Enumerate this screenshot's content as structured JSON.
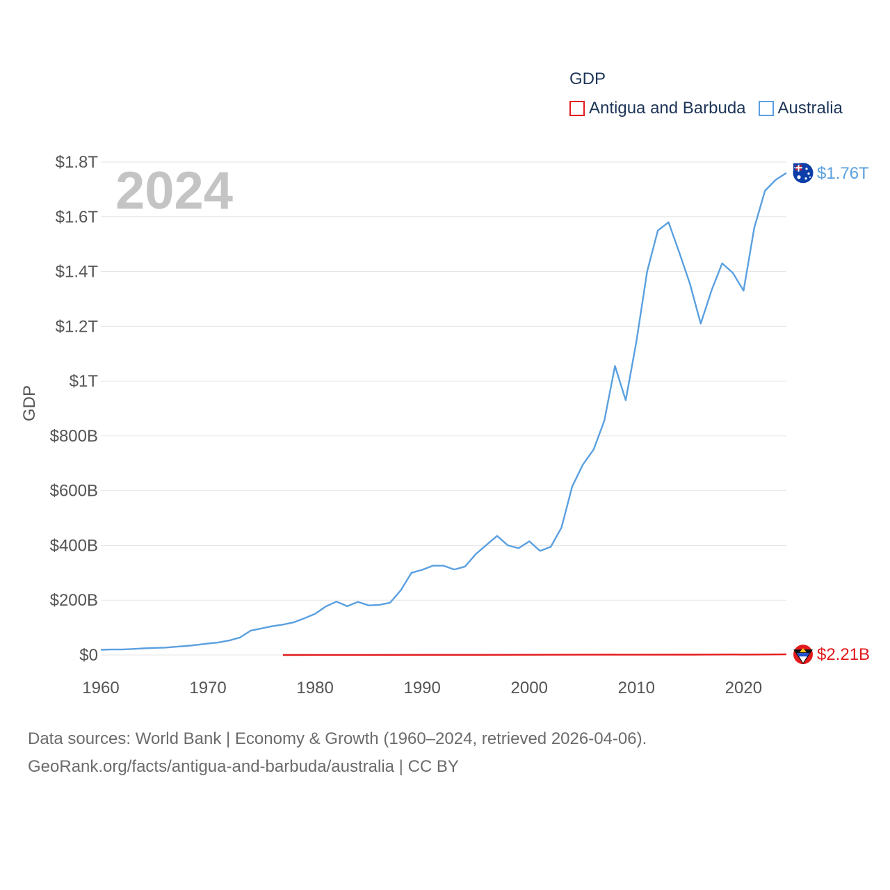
{
  "legend": {
    "title": "GDP",
    "items": [
      {
        "name": "Antigua and Barbuda",
        "color": "#e31a1c"
      },
      {
        "name": "Australia",
        "color": "#5aa0e0"
      }
    ]
  },
  "footer": {
    "line1": "Data sources: World Bank | Economy & Growth (1960–2024, retrieved 2026-04-06).",
    "line2": "GeoRank.org/facts/antigua-and-barbuda/australia | CC BY"
  },
  "chart_data": {
    "type": "line",
    "title": "GDP",
    "ylabel": "GDP",
    "xlabel": "",
    "year_label": "2024",
    "xlim": [
      1960,
      2024
    ],
    "ylim": [
      0,
      1.8
    ],
    "y_unit": "trillion USD",
    "y_ticks": [
      {
        "value": 0,
        "label": "$0"
      },
      {
        "value": 0.2,
        "label": "$200B"
      },
      {
        "value": 0.4,
        "label": "$400B"
      },
      {
        "value": 0.6,
        "label": "$600B"
      },
      {
        "value": 0.8,
        "label": "$800B"
      },
      {
        "value": 1.0,
        "label": "$1T"
      },
      {
        "value": 1.2,
        "label": "$1.2T"
      },
      {
        "value": 1.4,
        "label": "$1.4T"
      },
      {
        "value": 1.6,
        "label": "$1.6T"
      },
      {
        "value": 1.8,
        "label": "$1.8T"
      }
    ],
    "x_ticks": [
      1960,
      1970,
      1980,
      1990,
      2000,
      2010,
      2020
    ],
    "grid": true,
    "series": [
      {
        "name": "Australia",
        "color": "#5aa0e0",
        "end_label": "$1.76T",
        "x": [
          1960,
          1961,
          1962,
          1963,
          1964,
          1965,
          1966,
          1967,
          1968,
          1969,
          1970,
          1971,
          1972,
          1973,
          1974,
          1975,
          1976,
          1977,
          1978,
          1979,
          1980,
          1981,
          1982,
          1983,
          1984,
          1985,
          1986,
          1987,
          1988,
          1989,
          1990,
          1991,
          1992,
          1993,
          1994,
          1995,
          1996,
          1997,
          1998,
          1999,
          2000,
          2001,
          2002,
          2003,
          2004,
          2005,
          2006,
          2007,
          2008,
          2009,
          2010,
          2011,
          2012,
          2013,
          2014,
          2015,
          2016,
          2017,
          2018,
          2019,
          2020,
          2021,
          2022,
          2023,
          2024
        ],
        "values": [
          0.019,
          0.02,
          0.02,
          0.022,
          0.024,
          0.026,
          0.027,
          0.03,
          0.033,
          0.037,
          0.042,
          0.046,
          0.053,
          0.064,
          0.089,
          0.097,
          0.105,
          0.111,
          0.119,
          0.134,
          0.15,
          0.177,
          0.195,
          0.178,
          0.194,
          0.181,
          0.183,
          0.191,
          0.236,
          0.3,
          0.311,
          0.326,
          0.326,
          0.312,
          0.323,
          0.368,
          0.402,
          0.435,
          0.4,
          0.39,
          0.415,
          0.38,
          0.395,
          0.465,
          0.615,
          0.695,
          0.75,
          0.855,
          1.055,
          0.93,
          1.145,
          1.4,
          1.55,
          1.58,
          1.47,
          1.355,
          1.21,
          1.33,
          1.43,
          1.395,
          1.33,
          1.56,
          1.695,
          1.735,
          1.76
        ]
      },
      {
        "name": "Antigua and Barbuda",
        "color": "#e31a1c",
        "end_label": "$2.21B",
        "x": [
          1977,
          1980,
          1985,
          1990,
          1995,
          2000,
          2005,
          2008,
          2010,
          2015,
          2019,
          2020,
          2022,
          2024
        ],
        "values": [
          8e-05,
          0.00014,
          0.00025,
          0.0004,
          0.00057,
          0.0007,
          0.0009,
          0.0012,
          0.0011,
          0.0013,
          0.0017,
          0.0014,
          0.0017,
          0.00221
        ]
      }
    ]
  }
}
